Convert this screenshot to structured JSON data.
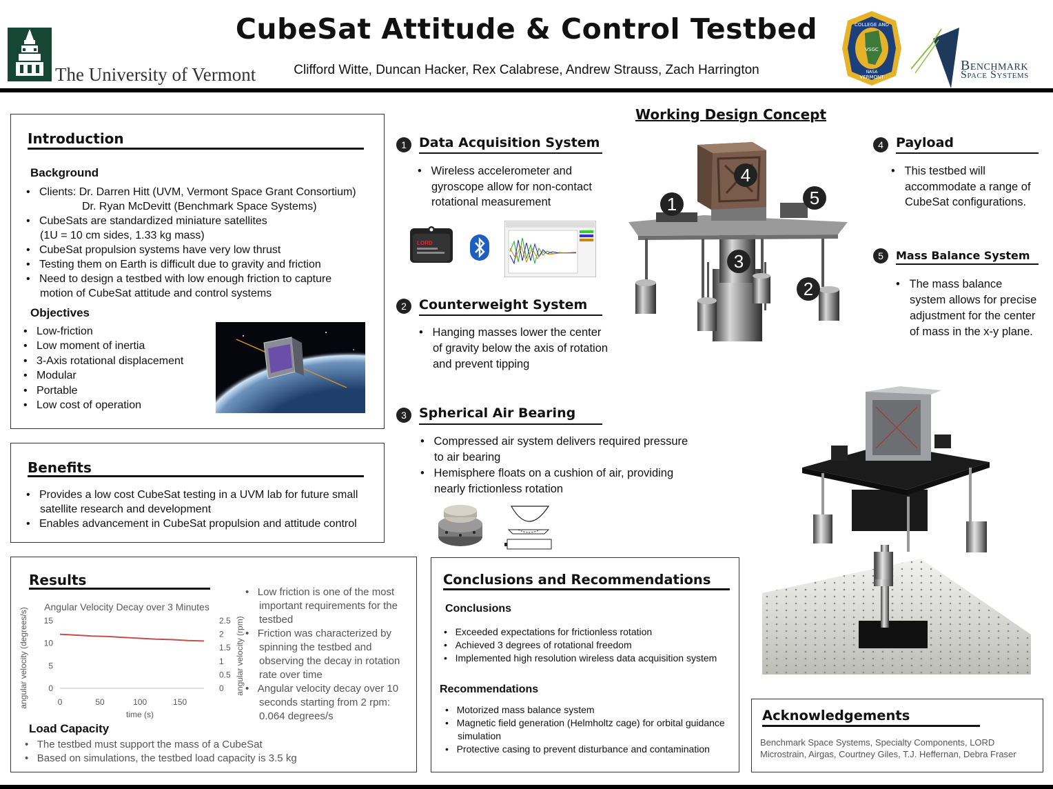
{
  "header": {
    "title": "CubeSat Attitude & Control Testbed",
    "authors": "Clifford Witte, Duncan Hacker, Rex Calabrese, Andrew Strauss, Zach Harrington",
    "uvm_name": "The University of Vermont",
    "vsgc_top": "COLLEGE AND",
    "vsgc_mid": "VSGC",
    "vsgc_bottom": "VERMONT",
    "vsgc_nasa": "NASA",
    "bss_line1": "Benchmark",
    "bss_line2": "Space Systems"
  },
  "intro": {
    "title": "Introduction",
    "background_h": "Background",
    "background": [
      "Clients: Dr. Darren Hitt (UVM, Vermont Space Grant Consortium)",
      "Dr. Ryan McDevitt (Benchmark Space Systems)",
      "CubeSats are standardized miniature satellites",
      "(1U = 10 cm sides, 1.33 kg mass)",
      "CubeSat propulsion systems have very low thrust",
      "Testing them on Earth is difficult due to gravity and friction",
      "Need to design a testbed with low enough friction to capture",
      "motion of CubeSat attitude and control systems"
    ],
    "objectives_h": "Objectives",
    "objectives": [
      "Low-friction",
      "Low moment of inertia",
      "3-Axis rotational displacement",
      "Modular",
      "Portable",
      "Low cost of operation"
    ]
  },
  "benefits": {
    "title": "Benefits",
    "items": [
      "Provides a low cost CubeSat testing in a UVM lab for future small satellite research and development",
      "Enables advancement in CubeSat propulsion and attitude control"
    ]
  },
  "results": {
    "title": "Results",
    "bullets": [
      "Low friction is one of the most important requirements for the testbed",
      "Friction was characterized by spinning the testbed and observing the decay in rotation rate over time",
      "Angular velocity decay over 10 seconds starting from 2 rpm: 0.064 degrees/s"
    ],
    "load_h": "Load Capacity",
    "load": [
      "The testbed must support the mass of a CubeSat",
      "Based on simulations, the testbed load capacity is 3.5 kg"
    ]
  },
  "chart_data": {
    "type": "line",
    "title": "Angular Velocity Decay over 3 Minutes",
    "xlabel": "time (s)",
    "ylabel": "angular velocity (degrees/s)",
    "ylabel_right": "angular velocity (rpm)",
    "xlim": [
      0,
      180
    ],
    "ylim": [
      0,
      15
    ],
    "ylim_right": [
      0,
      2.5
    ],
    "x_ticks": [
      "0",
      "50",
      "100",
      "150"
    ],
    "y_ticks": [
      "0",
      "5",
      "10",
      "15"
    ],
    "y_ticks_right": [
      "0",
      "0.5",
      "1",
      "1.5",
      "2",
      "2.5"
    ],
    "series": [
      {
        "x": [
          0,
          20,
          40,
          60,
          80,
          100,
          120,
          140,
          160,
          180
        ],
        "values": [
          12.0,
          11.8,
          11.6,
          11.5,
          11.3,
          11.1,
          10.9,
          10.8,
          10.6,
          10.5
        ],
        "color": "#c0504d"
      }
    ],
    "grid": false
  },
  "design": {
    "title": "Working Design Concept",
    "daq_n": "1",
    "daq_title": "Data Acquisition System",
    "daq_items": [
      "Wireless accelerometer and gyroscope allow for non-contact rotational measurement"
    ],
    "cw_n": "2",
    "cw_title": "Counterweight System",
    "cw_items": [
      "Hanging masses lower the center of gravity below the axis of rotation and prevent tipping"
    ],
    "sab_n": "3",
    "sab_title": "Spherical Air Bearing",
    "sab_items": [
      "Compressed air system delivers required pressure to air bearing",
      "Hemisphere floats on a cushion of air, providing nearly frictionless rotation"
    ],
    "payload_n": "4",
    "payload_title": "Payload",
    "payload_items": [
      "This testbed will accommodate a range of CubeSat configurations."
    ],
    "mbs_n": "5",
    "mbs_title": "Mass Balance System",
    "mbs_items": [
      "The mass balance system allows for precise adjustment for the center of mass in the x-y plane."
    ],
    "lord_brand": "LORD"
  },
  "conclusions": {
    "title": "Conclusions and Recommendations",
    "conc_h": "Conclusions",
    "conc": [
      "Exceeded expectations for frictionless rotation",
      "Achieved 3 degrees of rotational freedom",
      "Implemented high resolution wireless data acquisition system"
    ],
    "rec_h": "Recommendations",
    "rec": [
      "Motorized mass balance system",
      "Magnetic field generation (Helmholtz cage) for orbital guidance simulation",
      "Protective casing to prevent disturbance and contamination"
    ]
  },
  "ack": {
    "title": "Acknowledgements",
    "text": "Benchmark Space Systems, Specialty Components, LORD Microstrain, Airgas, Courtney Giles, T.J. Heffernan, Debra Fraser"
  },
  "colors": {
    "uvm_green": "#154734",
    "vsgc_gold": "#e5b22a",
    "vsgc_blue": "#1b3f7a",
    "bss_navy": "#1d3a5c",
    "series": "#c0504d"
  }
}
